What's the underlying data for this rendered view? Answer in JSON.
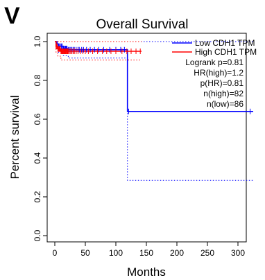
{
  "panel_label": "V",
  "chart_data": {
    "type": "line",
    "title": "Overall Survival",
    "xlabel": "Months",
    "ylabel": "Percent survival",
    "xlim": [
      0,
      330
    ],
    "ylim": [
      0,
      1.0
    ],
    "xticks": [
      0,
      50,
      100,
      150,
      200,
      250,
      300
    ],
    "xtick_labels": [
      "0",
      "50",
      "100",
      "150",
      "200",
      "250",
      "300"
    ],
    "yticks": [
      0.0,
      0.2,
      0.4,
      0.6,
      0.8,
      1.0
    ],
    "ytick_labels": [
      "0.0",
      "0.2",
      "0.4",
      "0.6",
      "0.8",
      "1.0"
    ],
    "grid": false,
    "legend_position": "top-right",
    "legend": [
      {
        "label": "Low CDH1 TPM",
        "color": "#0000ff"
      },
      {
        "label": "High CDH1 TPM",
        "color": "#ff0000"
      }
    ],
    "annotations": [
      "Logrank p=0.81",
      "HR(high)=1.2",
      "p(HR)=0.81",
      "n(high)=82",
      "n(low)=86"
    ],
    "series": [
      {
        "name": "Low CDH1 TPM",
        "color": "#0000ff",
        "step": [
          [
            0,
            1.0
          ],
          [
            3,
            0.988
          ],
          [
            6,
            0.976
          ],
          [
            14,
            0.964
          ],
          [
            22,
            0.958
          ],
          [
            119,
            0.958
          ],
          [
            119,
            0.64
          ],
          [
            325,
            0.64
          ]
        ],
        "censor": [
          4,
          6,
          8,
          9,
          11,
          12,
          14,
          16,
          17,
          18,
          19,
          20,
          22,
          24,
          26,
          28,
          30,
          32,
          35,
          38,
          40,
          44,
          47,
          52,
          58,
          65,
          72,
          80,
          90,
          100,
          108,
          114,
          121,
          320
        ],
        "ci_upper": [
          [
            0,
            1.0
          ],
          [
            119,
            1.0
          ],
          [
            325,
            1.0
          ]
        ],
        "ci_lower": [
          [
            0,
            1.0
          ],
          [
            3,
            0.96
          ],
          [
            6,
            0.945
          ],
          [
            14,
            0.928
          ],
          [
            22,
            0.915
          ],
          [
            119,
            0.915
          ],
          [
            119,
            0.285
          ],
          [
            325,
            0.285
          ]
        ]
      },
      {
        "name": "High CDH1 TPM",
        "color": "#ff0000",
        "step": [
          [
            0,
            1.0
          ],
          [
            2,
            0.975
          ],
          [
            5,
            0.962
          ],
          [
            10,
            0.95
          ],
          [
            142,
            0.95
          ]
        ],
        "censor": [
          2,
          3,
          4,
          5,
          6,
          7,
          8,
          9,
          10,
          11,
          12,
          13,
          14,
          15,
          16,
          17,
          18,
          19,
          20,
          21,
          22,
          24,
          26,
          28,
          30,
          32,
          35,
          38,
          42,
          46,
          50,
          55,
          62,
          70,
          78,
          85,
          92,
          100,
          110,
          118,
          125,
          133,
          140
        ],
        "ci_upper": [
          [
            0,
            1.0
          ],
          [
            142,
            1.0
          ]
        ],
        "ci_lower": [
          [
            0,
            1.0
          ],
          [
            2,
            0.94
          ],
          [
            5,
            0.925
          ],
          [
            10,
            0.905
          ],
          [
            142,
            0.905
          ]
        ]
      }
    ]
  }
}
